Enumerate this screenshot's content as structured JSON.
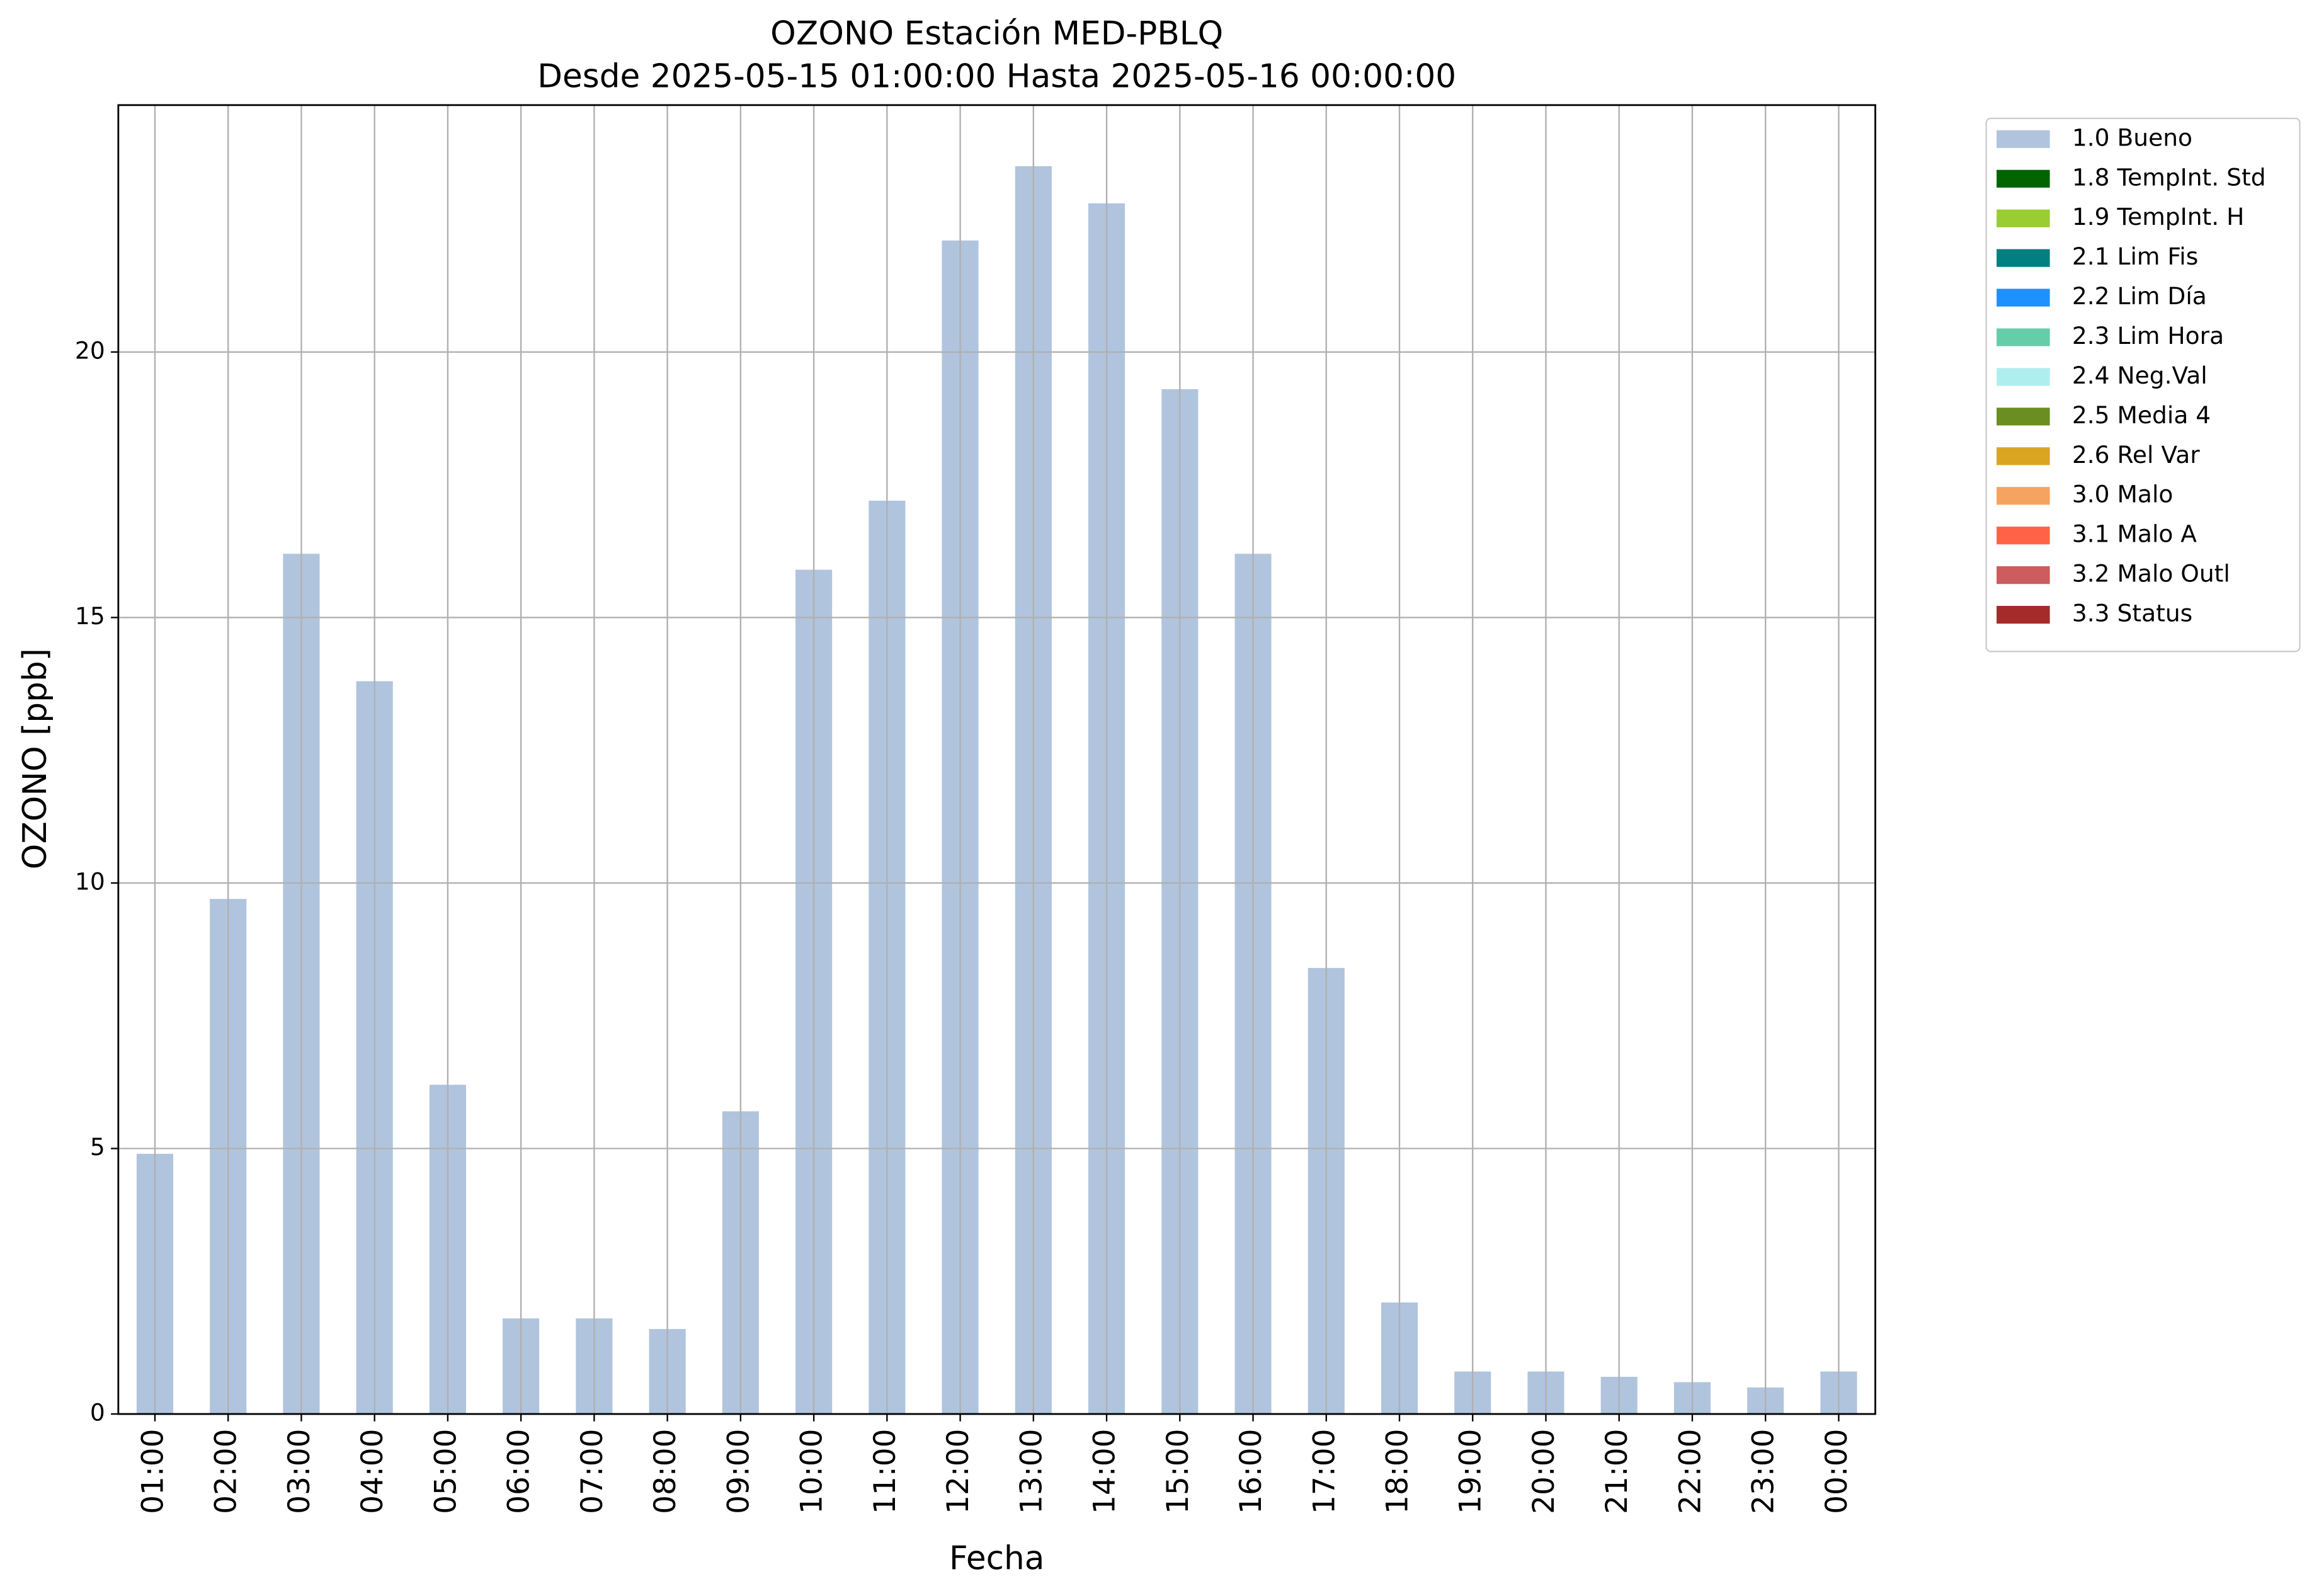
{
  "chart_data": {
    "type": "bar",
    "title": "OZONO Estación MED-PBLQ",
    "subtitle": "Desde 2025-05-15 01:00:00 Hasta 2025-05-16 00:00:00",
    "x_label": "Fecha",
    "y_label": "OZONO [ppb]",
    "categories": [
      "01:00",
      "02:00",
      "03:00",
      "04:00",
      "05:00",
      "06:00",
      "07:00",
      "08:00",
      "09:00",
      "10:00",
      "11:00",
      "12:00",
      "13:00",
      "14:00",
      "15:00",
      "16:00",
      "17:00",
      "18:00",
      "19:00",
      "20:00",
      "21:00",
      "22:00",
      "23:00",
      "00:00"
    ],
    "series": [
      {
        "name": "1.0 Bueno",
        "color": "#b0c4de",
        "values": [
          4.9,
          9.7,
          16.2,
          13.8,
          6.2,
          1.8,
          1.8,
          1.6,
          5.7,
          15.9,
          17.2,
          22.1,
          23.5,
          22.8,
          19.3,
          16.2,
          8.4,
          2.1,
          0.8,
          0.8,
          0.7,
          0.6,
          0.5,
          0.8
        ]
      },
      {
        "name": "1.8 TempInt. Std",
        "color": "#006400"
      },
      {
        "name": "1.9 TempInt. H",
        "color": "#9acd32"
      },
      {
        "name": "2.1 Lim Fis",
        "color": "#008080"
      },
      {
        "name": "2.2 Lim Día",
        "color": "#1e90ff"
      },
      {
        "name": "2.3 Lim Hora",
        "color": "#66cdaa"
      },
      {
        "name": "2.4 Neg.Val",
        "color": "#afeeee"
      },
      {
        "name": "2.5 Media 4",
        "color": "#6b8e23"
      },
      {
        "name": "2.6 Rel Var",
        "color": "#daa520"
      },
      {
        "name": "3.0 Malo",
        "color": "#f4a460"
      },
      {
        "name": "3.1 Malo A",
        "color": "#ff6347"
      },
      {
        "name": "3.2 Malo Outl",
        "color": "#cd5c5c"
      },
      {
        "name": "3.3 Status",
        "color": "#a52a2a"
      }
    ],
    "ylim": [
      0,
      24.65
    ],
    "yticks": [
      0,
      5,
      10,
      15,
      20
    ],
    "grid": true,
    "legend": "outside upper right"
  }
}
